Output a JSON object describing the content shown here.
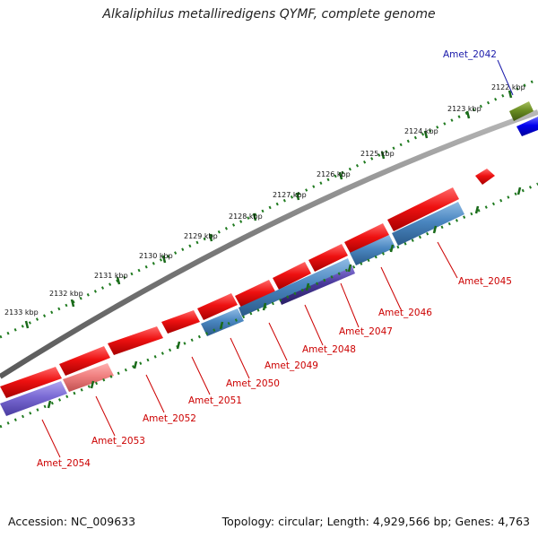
{
  "title": "Alkaliphilus metalliredigens QYMF, complete genome",
  "footer": {
    "accession": "Accession: NC_009633",
    "summary": "Topology: circular; Length: 4,929,566 bp; Genes: 4,763"
  },
  "colors": {
    "backbone": "#8a8a8a",
    "tick_ring": "#1f7a1f",
    "forward_gene": "#ee1111",
    "reverse_gene": "#4a86c0",
    "reverse_gene_dark": "#4b3a9c",
    "label_red": "#cc0000",
    "label_blue": "#1a1aaa",
    "olive": "#6b8e23",
    "blue_block": "#0000ee"
  },
  "scale_labels": [
    "2122 kbp",
    "2123 kbp",
    "2124 kbp",
    "2125 kbp",
    "2126 kbp",
    "2127 kbp",
    "2128 kbp",
    "2129 kbp",
    "2130 kbp",
    "2131 kbp",
    "2132 kbp",
    "2133 kbp"
  ],
  "gene_labels": [
    {
      "text": "Amet_2042",
      "color": "#1a1aaa"
    },
    {
      "text": "Amet_2045",
      "color": "#cc0000"
    },
    {
      "text": "Amet_2046",
      "color": "#cc0000"
    },
    {
      "text": "Amet_2047",
      "color": "#cc0000"
    },
    {
      "text": "Amet_2048",
      "color": "#cc0000"
    },
    {
      "text": "Amet_2049",
      "color": "#cc0000"
    },
    {
      "text": "Amet_2050",
      "color": "#cc0000"
    },
    {
      "text": "Amet_2051",
      "color": "#cc0000"
    },
    {
      "text": "Amet_2052",
      "color": "#cc0000"
    },
    {
      "text": "Amet_2053",
      "color": "#cc0000"
    },
    {
      "text": "Amet_2054",
      "color": "#cc0000"
    }
  ]
}
